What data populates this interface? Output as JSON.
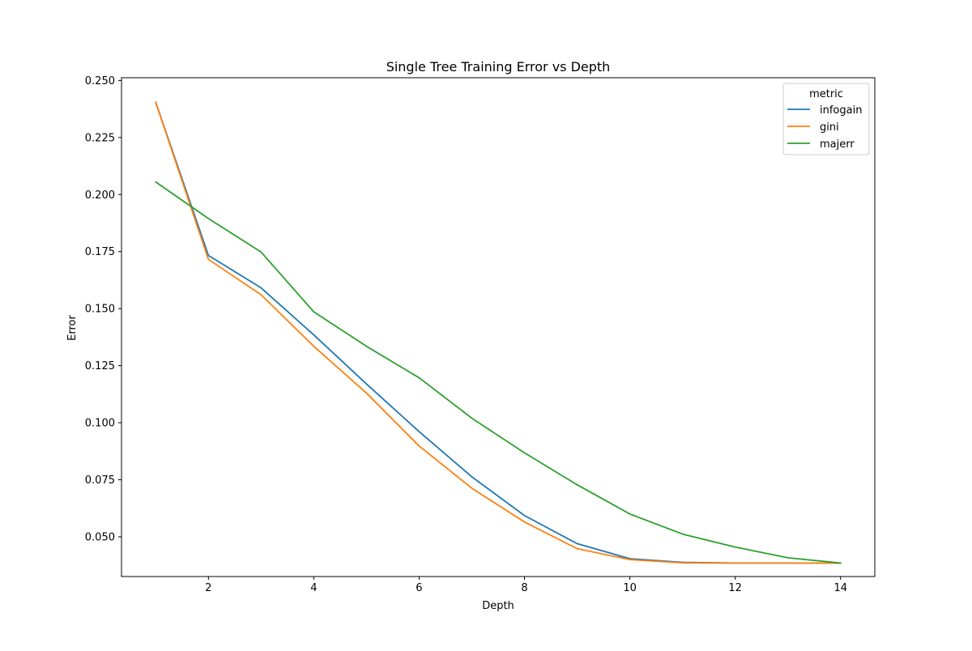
{
  "chart_data": {
    "type": "line",
    "title": "Single Tree Training Error vs Depth",
    "xlabel": "Depth",
    "ylabel": "Error",
    "xlim": [
      0.35,
      14.65
    ],
    "ylim": [
      0.0326,
      0.2512
    ],
    "x_ticks": [
      "2",
      "4",
      "6",
      "8",
      "10",
      "12",
      "14"
    ],
    "y_ticks": [
      "0.050",
      "0.075",
      "0.100",
      "0.125",
      "0.150",
      "0.175",
      "0.200",
      "0.225",
      "0.250"
    ],
    "grid": false,
    "legend": {
      "title": "metric",
      "placement": "top-right"
    },
    "x": [
      1,
      2,
      3,
      4,
      5,
      6,
      7,
      8,
      9,
      10,
      11,
      12,
      13,
      14
    ],
    "series": [
      {
        "name": "infogain",
        "color": "#1f77b4",
        "values": [
          0.2404,
          0.1733,
          0.1591,
          0.1385,
          0.117,
          0.0961,
          0.0763,
          0.0593,
          0.047,
          0.0404,
          0.0388,
          0.0385,
          0.0385,
          0.0385
        ]
      },
      {
        "name": "gini",
        "color": "#ff7f0e",
        "values": [
          0.2404,
          0.1716,
          0.1561,
          0.1335,
          0.113,
          0.0898,
          0.0713,
          0.0565,
          0.0448,
          0.04,
          0.0386,
          0.0385,
          0.0385,
          0.0385
        ]
      },
      {
        "name": "majerr",
        "color": "#2ca02c",
        "values": [
          0.2055,
          0.1895,
          0.1748,
          0.1486,
          0.1335,
          0.1197,
          0.102,
          0.0868,
          0.0728,
          0.06,
          0.0512,
          0.0455,
          0.0408,
          0.0385
        ]
      }
    ]
  }
}
